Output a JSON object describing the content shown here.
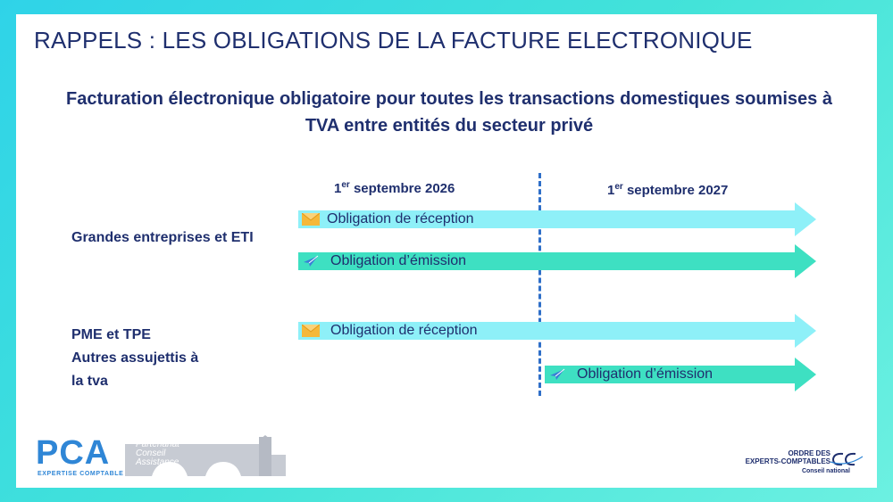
{
  "slide": {
    "title": "RAPPELS : LES OBLIGATIONS DE LA FACTURE ELECTRONIQUE",
    "subtitle_line1": "Facturation électronique obligatoire pour toutes les transactions domestiques soumises à",
    "subtitle_line2": "TVA entre entités du secteur privé"
  },
  "timeline": {
    "dates": [
      {
        "prefix": "1",
        "sup": "er",
        "rest": " septembre 2026"
      },
      {
        "prefix": "1",
        "sup": "er",
        "rest": " septembre 2027"
      }
    ],
    "groups": [
      {
        "lines": [
          "Grandes entreprises et ETI"
        ]
      },
      {
        "lines": [
          "PME et TPE",
          "Autres assujettis à",
          "la tva"
        ]
      }
    ],
    "arrows": [
      {
        "label": "Obligation de réception",
        "kind": "reception",
        "icon": "envelope-icon"
      },
      {
        "label": "Obligation d’émission",
        "kind": "emission",
        "icon": "paper-plane-icon"
      },
      {
        "label": "Obligation de réception",
        "kind": "reception",
        "icon": "envelope-icon"
      },
      {
        "label": "Obligation d’émission",
        "kind": "emission",
        "icon": "paper-plane-icon"
      }
    ]
  },
  "logos": {
    "pca": {
      "name": "PCA",
      "sub": "EXPERTISE COMPTABLE",
      "tagline": "Partenariat\nConseil\nAssistance"
    },
    "oec": {
      "line1": "ORDRE DES",
      "line2": "EXPERTS-COMPTABLES",
      "line3": "Conseil national"
    }
  },
  "colors": {
    "title": "#1f2f6e",
    "reception_arrow": "#8ef0f8",
    "emission_arrow": "#3ee0c2",
    "divider": "#2f6fc8",
    "frame": "#43e3d9"
  }
}
